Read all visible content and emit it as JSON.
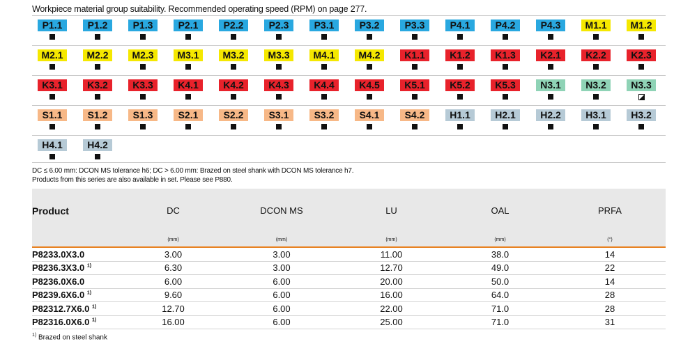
{
  "title": "Workpiece material group suitability. Recommended operating speed (RPM) on page 277.",
  "colors": {
    "P": "#29a8e0",
    "M": "#f5e800",
    "K": "#e8222b",
    "N": "#8fd3b6",
    "S": "#f7b887",
    "H": "#b6cad6",
    "accent": "#e8801f"
  },
  "materials": [
    [
      {
        "code": "P1.1",
        "g": "P",
        "mark": "full"
      },
      {
        "code": "P1.2",
        "g": "P",
        "mark": "full"
      },
      {
        "code": "P1.3",
        "g": "P",
        "mark": "full"
      },
      {
        "code": "P2.1",
        "g": "P",
        "mark": "full"
      },
      {
        "code": "P2.2",
        "g": "P",
        "mark": "full"
      },
      {
        "code": "P2.3",
        "g": "P",
        "mark": "full"
      },
      {
        "code": "P3.1",
        "g": "P",
        "mark": "full"
      },
      {
        "code": "P3.2",
        "g": "P",
        "mark": "full"
      },
      {
        "code": "P3.3",
        "g": "P",
        "mark": "full"
      },
      {
        "code": "P4.1",
        "g": "P",
        "mark": "full"
      },
      {
        "code": "P4.2",
        "g": "P",
        "mark": "full"
      },
      {
        "code": "P4.3",
        "g": "P",
        "mark": "full"
      },
      {
        "code": "M1.1",
        "g": "M",
        "mark": "full"
      },
      {
        "code": "M1.2",
        "g": "M",
        "mark": "full"
      }
    ],
    [
      {
        "code": "M2.1",
        "g": "M",
        "mark": "full"
      },
      {
        "code": "M2.2",
        "g": "M",
        "mark": "full"
      },
      {
        "code": "M2.3",
        "g": "M",
        "mark": "full"
      },
      {
        "code": "M3.1",
        "g": "M",
        "mark": "full"
      },
      {
        "code": "M3.2",
        "g": "M",
        "mark": "full"
      },
      {
        "code": "M3.3",
        "g": "M",
        "mark": "full"
      },
      {
        "code": "M4.1",
        "g": "M",
        "mark": "full"
      },
      {
        "code": "M4.2",
        "g": "M",
        "mark": "full"
      },
      {
        "code": "K1.1",
        "g": "K",
        "mark": "full"
      },
      {
        "code": "K1.2",
        "g": "K",
        "mark": "full"
      },
      {
        "code": "K1.3",
        "g": "K",
        "mark": "full"
      },
      {
        "code": "K2.1",
        "g": "K",
        "mark": "full"
      },
      {
        "code": "K2.2",
        "g": "K",
        "mark": "full"
      },
      {
        "code": "K2.3",
        "g": "K",
        "mark": "full"
      }
    ],
    [
      {
        "code": "K3.1",
        "g": "K",
        "mark": "full"
      },
      {
        "code": "K3.2",
        "g": "K",
        "mark": "full"
      },
      {
        "code": "K3.3",
        "g": "K",
        "mark": "full"
      },
      {
        "code": "K4.1",
        "g": "K",
        "mark": "full"
      },
      {
        "code": "K4.2",
        "g": "K",
        "mark": "full"
      },
      {
        "code": "K4.3",
        "g": "K",
        "mark": "full"
      },
      {
        "code": "K4.4",
        "g": "K",
        "mark": "full"
      },
      {
        "code": "K4.5",
        "g": "K",
        "mark": "full"
      },
      {
        "code": "K5.1",
        "g": "K",
        "mark": "full"
      },
      {
        "code": "K5.2",
        "g": "K",
        "mark": "full"
      },
      {
        "code": "K5.3",
        "g": "K",
        "mark": "full"
      },
      {
        "code": "N3.1",
        "g": "N",
        "mark": "full"
      },
      {
        "code": "N3.2",
        "g": "N",
        "mark": "full"
      },
      {
        "code": "N3.3",
        "g": "N",
        "mark": "partial"
      }
    ],
    [
      {
        "code": "S1.1",
        "g": "S",
        "mark": "full"
      },
      {
        "code": "S1.2",
        "g": "S",
        "mark": "full"
      },
      {
        "code": "S1.3",
        "g": "S",
        "mark": "full"
      },
      {
        "code": "S2.1",
        "g": "S",
        "mark": "full"
      },
      {
        "code": "S2.2",
        "g": "S",
        "mark": "full"
      },
      {
        "code": "S3.1",
        "g": "S",
        "mark": "full"
      },
      {
        "code": "S3.2",
        "g": "S",
        "mark": "full"
      },
      {
        "code": "S4.1",
        "g": "S",
        "mark": "full"
      },
      {
        "code": "S4.2",
        "g": "S",
        "mark": "full"
      },
      {
        "code": "H1.1",
        "g": "H",
        "mark": "full"
      },
      {
        "code": "H2.1",
        "g": "H",
        "mark": "full"
      },
      {
        "code": "H2.2",
        "g": "H",
        "mark": "full"
      },
      {
        "code": "H3.1",
        "g": "H",
        "mark": "full"
      },
      {
        "code": "H3.2",
        "g": "H",
        "mark": "full"
      }
    ],
    [
      {
        "code": "H4.1",
        "g": "H",
        "mark": "full"
      },
      {
        "code": "H4.2",
        "g": "H",
        "mark": "full"
      }
    ]
  ],
  "notes": [
    "DC ≤ 6.00 mm: DCON MS tolerance h6; DC > 6.00 mm: Brazed on steel shank with DCON MS tolerance h7.",
    "Products from this series are also available in set. Please see P880."
  ],
  "table": {
    "headers": [
      "Product",
      "DC",
      "DCON MS",
      "LU",
      "OAL",
      "PRFA"
    ],
    "units": [
      "",
      "(mm)",
      "(mm)",
      "(mm)",
      "(mm)",
      "(°)"
    ],
    "rows": [
      {
        "product": "P8233.0X3.0",
        "sup": "",
        "dc": "3.00",
        "dcon": "3.00",
        "lu": "11.00",
        "oal": "38.0",
        "prfa": "14"
      },
      {
        "product": "P8236.3X3.0",
        "sup": "1)",
        "dc": "6.30",
        "dcon": "3.00",
        "lu": "12.70",
        "oal": "49.0",
        "prfa": "22"
      },
      {
        "product": "P8236.0X6.0",
        "sup": "",
        "dc": "6.00",
        "dcon": "6.00",
        "lu": "20.00",
        "oal": "50.0",
        "prfa": "14"
      },
      {
        "product": "P8239.6X6.0",
        "sup": "1)",
        "dc": "9.60",
        "dcon": "6.00",
        "lu": "16.00",
        "oal": "64.0",
        "prfa": "28"
      },
      {
        "product": "P82312.7X6.0",
        "sup": "1)",
        "dc": "12.70",
        "dcon": "6.00",
        "lu": "22.00",
        "oal": "71.0",
        "prfa": "28"
      },
      {
        "product": "P82316.0X6.0",
        "sup": "1)",
        "dc": "16.00",
        "dcon": "6.00",
        "lu": "25.00",
        "oal": "71.0",
        "prfa": "31"
      }
    ]
  },
  "footnote": {
    "sup": "1)",
    "text": "Brazed on steel shank"
  }
}
